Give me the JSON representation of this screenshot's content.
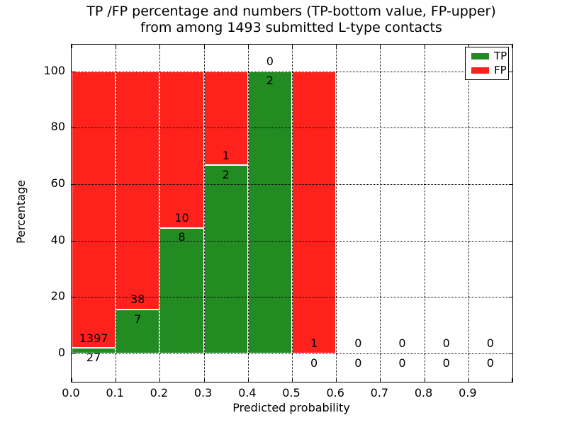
{
  "chart_data": {
    "type": "bar",
    "stacked": true,
    "title_line1": "TP /FP percentage and numbers (TP-bottom value, FP-upper)",
    "title_line2": "from among 1493 submitted L-type contacts",
    "xlabel": "Predicted probability",
    "ylabel": "Percentage",
    "total_contacts": 1493,
    "x_ticks": [
      "0.0",
      "0.1",
      "0.2",
      "0.3",
      "0.4",
      "0.5",
      "0.6",
      "0.7",
      "0.8",
      "0.9"
    ],
    "y_ticks": [
      0,
      20,
      40,
      60,
      80,
      100
    ],
    "xlim": [
      0.0,
      1.0
    ],
    "ylim": [
      -10,
      110
    ],
    "grid": "dotted both axes, drawn over bars",
    "legend_position": "upper right",
    "legend": [
      {
        "label": "TP",
        "color": "#228b22"
      },
      {
        "label": "FP",
        "color": "#ff221c"
      }
    ],
    "colors": {
      "tp": "#228b22",
      "fp": "#ff221c"
    },
    "bin_width": 0.1,
    "bins": [
      {
        "range": [
          0.0,
          0.1
        ],
        "tp": 27,
        "fp": 1397
      },
      {
        "range": [
          0.1,
          0.2
        ],
        "tp": 7,
        "fp": 38
      },
      {
        "range": [
          0.2,
          0.3
        ],
        "tp": 8,
        "fp": 10
      },
      {
        "range": [
          0.3,
          0.4
        ],
        "tp": 2,
        "fp": 1
      },
      {
        "range": [
          0.4,
          0.5
        ],
        "tp": 2,
        "fp": 0
      },
      {
        "range": [
          0.5,
          0.6
        ],
        "tp": 0,
        "fp": 1
      },
      {
        "range": [
          0.6,
          0.7
        ],
        "tp": 0,
        "fp": 0
      },
      {
        "range": [
          0.7,
          0.8
        ],
        "tp": 0,
        "fp": 0
      },
      {
        "range": [
          0.8,
          0.9
        ],
        "tp": 0,
        "fp": 0
      },
      {
        "range": [
          0.9,
          1.0
        ],
        "tp": 0,
        "fp": 0
      }
    ]
  }
}
